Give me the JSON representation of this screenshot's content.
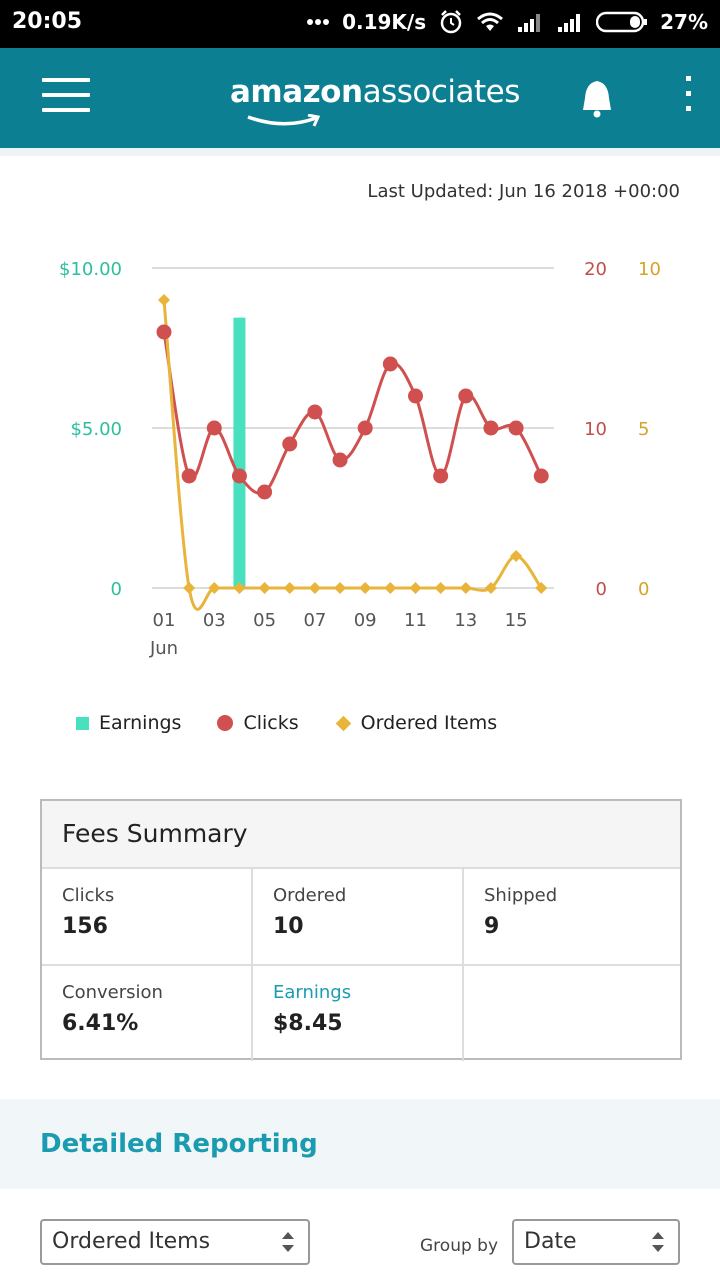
{
  "status_bar": {
    "time": "20:05",
    "network_speed": "0.19K/s",
    "battery": "27%",
    "icons": [
      "more-dots-icon",
      "alarm-icon",
      "wifi-icon",
      "signal-icon",
      "signal-icon",
      "battery-icon"
    ]
  },
  "header": {
    "logo_bold": "amazon",
    "logo_light": "associates",
    "icons": [
      "hamburger-menu-icon",
      "bell-icon",
      "more-vertical-icon"
    ],
    "color": "#0d7f92"
  },
  "last_updated": "Last Updated: Jun 16 2018 +00:00",
  "chart_data": {
    "type": "bar+line",
    "x": [
      "01",
      "02",
      "03",
      "04",
      "05",
      "06",
      "07",
      "08",
      "09",
      "10",
      "11",
      "12",
      "13",
      "14",
      "15",
      "16"
    ],
    "x_tick_labels": [
      "01",
      "03",
      "05",
      "07",
      "09",
      "11",
      "13",
      "15"
    ],
    "x_sub_label": "Jun",
    "series": [
      {
        "name": "Earnings",
        "type": "bar",
        "axis": "left",
        "color": "#49e0c0",
        "values": [
          0,
          0,
          0,
          8.45,
          0,
          0,
          0,
          0,
          0,
          0,
          0,
          0,
          0,
          0,
          0,
          0
        ]
      },
      {
        "name": "Clicks",
        "type": "line",
        "axis": "right1",
        "color": "#d05050",
        "values": [
          16,
          7,
          10,
          7,
          6,
          9,
          11,
          8,
          10,
          14,
          12,
          7,
          12,
          10,
          10,
          7
        ]
      },
      {
        "name": "Ordered Items",
        "type": "line",
        "axis": "right2",
        "color": "#e9b43a",
        "values": [
          9,
          0,
          0,
          0,
          0,
          0,
          0,
          0,
          0,
          0,
          0,
          0,
          0,
          0,
          1,
          0
        ]
      }
    ],
    "left_axis": {
      "ticks": [
        "$10.00",
        "$5.00",
        "0"
      ],
      "range": [
        0,
        10
      ],
      "color": "#2bbfa0"
    },
    "right_axis_1": {
      "ticks": [
        "20",
        "10",
        "0"
      ],
      "range": [
        0,
        20
      ],
      "color": "#c0504d"
    },
    "right_axis_2": {
      "ticks": [
        "10",
        "5",
        "0"
      ],
      "range": [
        0,
        10
      ],
      "color": "#d4a42a"
    },
    "grid": true,
    "legend_position": "bottom"
  },
  "legend": {
    "earnings": "Earnings",
    "clicks": "Clicks",
    "ordered": "Ordered Items"
  },
  "fees": {
    "title": "Fees Summary",
    "clicks_label": "Clicks",
    "clicks": "156",
    "ordered_label": "Ordered",
    "ordered": "10",
    "shipped_label": "Shipped",
    "shipped": "9",
    "conversion_label": "Conversion",
    "conversion": "6.41%",
    "earnings_label": "Earnings",
    "earnings": "$8.45"
  },
  "detailed": {
    "title": "Detailed Reporting",
    "report_select": "Ordered Items",
    "group_by_label": "Group by",
    "group_by_select": "Date"
  }
}
